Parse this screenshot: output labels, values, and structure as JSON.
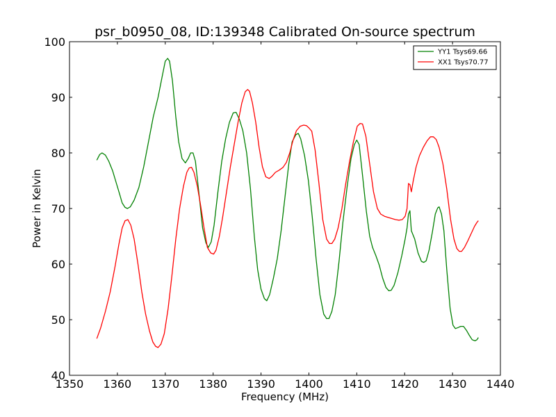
{
  "chart_data": {
    "type": "line",
    "title": "psr_b0950_08, ID:139348 Calibrated On-source spectrum",
    "xlabel": "Frequency (MHz)",
    "ylabel": "Power in Kelvin",
    "xlim": [
      1350,
      1440
    ],
    "ylim": [
      40,
      100
    ],
    "xticks": [
      1350,
      1360,
      1370,
      1380,
      1390,
      1400,
      1410,
      1420,
      1430,
      1440
    ],
    "yticks": [
      40,
      50,
      60,
      70,
      80,
      90,
      100
    ],
    "grid": false,
    "legend_position": "top-right",
    "series": [
      {
        "name": "YY1 Tsys69.66",
        "color": "#008000",
        "points": [
          [
            1355.7,
            78.7
          ],
          [
            1356.3,
            79.7
          ],
          [
            1356.8,
            80.0
          ],
          [
            1357.5,
            79.6
          ],
          [
            1358.2,
            78.5
          ],
          [
            1359,
            76.8
          ],
          [
            1359.8,
            74.5
          ],
          [
            1360.5,
            72.5
          ],
          [
            1361,
            71.0
          ],
          [
            1361.6,
            70.2
          ],
          [
            1362.1,
            70.0
          ],
          [
            1362.7,
            70.3
          ],
          [
            1363.5,
            71.5
          ],
          [
            1364.5,
            73.8
          ],
          [
            1365.5,
            77.5
          ],
          [
            1366.5,
            82.0
          ],
          [
            1367.5,
            86.5
          ],
          [
            1368.5,
            90.0
          ],
          [
            1369.3,
            93.5
          ],
          [
            1370,
            96.5
          ],
          [
            1370.5,
            97.0
          ],
          [
            1370.9,
            96.5
          ],
          [
            1371.5,
            93.0
          ],
          [
            1372.2,
            86.5
          ],
          [
            1372.8,
            82.0
          ],
          [
            1373.5,
            79.0
          ],
          [
            1374.2,
            78.2
          ],
          [
            1374.8,
            79.0
          ],
          [
            1375.3,
            80.0
          ],
          [
            1375.8,
            80.0
          ],
          [
            1376.3,
            78.5
          ],
          [
            1377,
            73.0
          ],
          [
            1377.8,
            66.5
          ],
          [
            1378.5,
            63.8
          ],
          [
            1379,
            63.0
          ],
          [
            1379.6,
            64.0
          ],
          [
            1380.2,
            67.0
          ],
          [
            1381,
            73.0
          ],
          [
            1381.8,
            78.5
          ],
          [
            1382.6,
            82.5
          ],
          [
            1383.4,
            85.5
          ],
          [
            1384.2,
            87.2
          ],
          [
            1384.8,
            87.3
          ],
          [
            1385.5,
            86.0
          ],
          [
            1386.2,
            84.0
          ],
          [
            1387,
            80.0
          ],
          [
            1387.8,
            73.5
          ],
          [
            1388.6,
            65.0
          ],
          [
            1389.3,
            59.0
          ],
          [
            1390,
            55.5
          ],
          [
            1390.7,
            53.8
          ],
          [
            1391.2,
            53.4
          ],
          [
            1391.8,
            54.5
          ],
          [
            1392.6,
            57.5
          ],
          [
            1393.4,
            61.0
          ],
          [
            1394.2,
            66.0
          ],
          [
            1395,
            72.0
          ],
          [
            1395.8,
            78.0
          ],
          [
            1396.5,
            82.0
          ],
          [
            1397.3,
            83.3
          ],
          [
            1397.8,
            83.5
          ],
          [
            1398.3,
            82.5
          ],
          [
            1399.1,
            79.5
          ],
          [
            1399.9,
            75.0
          ],
          [
            1400.7,
            68.5
          ],
          [
            1401.5,
            61.0
          ],
          [
            1402.3,
            54.5
          ],
          [
            1403.1,
            51.0
          ],
          [
            1403.7,
            50.2
          ],
          [
            1404.2,
            50.2
          ],
          [
            1404.8,
            51.5
          ],
          [
            1405.5,
            54.5
          ],
          [
            1406.3,
            60.5
          ],
          [
            1407.1,
            67.5
          ],
          [
            1408,
            74.0
          ],
          [
            1408.8,
            79.0
          ],
          [
            1409.5,
            81.5
          ],
          [
            1410,
            82.3
          ],
          [
            1410.5,
            81.5
          ],
          [
            1411.2,
            76.0
          ],
          [
            1412,
            69.5
          ],
          [
            1412.7,
            65.0
          ],
          [
            1413.3,
            63.0
          ],
          [
            1414,
            61.5
          ],
          [
            1414.7,
            59.8
          ],
          [
            1415.4,
            57.5
          ],
          [
            1416.1,
            55.8
          ],
          [
            1416.7,
            55.2
          ],
          [
            1417.2,
            55.3
          ],
          [
            1417.8,
            56.2
          ],
          [
            1418.6,
            58.5
          ],
          [
            1419.4,
            61.5
          ],
          [
            1420.1,
            64.5
          ],
          [
            1420.5,
            66.5
          ],
          [
            1420.8,
            69.0
          ],
          [
            1421.1,
            69.6
          ],
          [
            1421.4,
            66.0
          ],
          [
            1422.1,
            64.5
          ],
          [
            1422.8,
            62.0
          ],
          [
            1423.5,
            60.5
          ],
          [
            1424,
            60.3
          ],
          [
            1424.5,
            60.6
          ],
          [
            1425.1,
            62.5
          ],
          [
            1425.8,
            65.8
          ],
          [
            1426.4,
            69.0
          ],
          [
            1426.9,
            70.1
          ],
          [
            1427.2,
            70.3
          ],
          [
            1427.7,
            69.0
          ],
          [
            1428.2,
            66.0
          ],
          [
            1428.8,
            59.0
          ],
          [
            1429.5,
            52.0
          ],
          [
            1430.1,
            49.0
          ],
          [
            1430.6,
            48.4
          ],
          [
            1431.2,
            48.6
          ],
          [
            1431.7,
            48.8
          ],
          [
            1432.3,
            48.8
          ],
          [
            1432.9,
            48.1
          ],
          [
            1433.5,
            47.2
          ],
          [
            1434.1,
            46.4
          ],
          [
            1434.7,
            46.2
          ],
          [
            1435.1,
            46.4
          ],
          [
            1435.4,
            46.8
          ]
        ]
      },
      {
        "name": "XX1 Tsys70.77",
        "color": "#ff0000",
        "points": [
          [
            1355.7,
            46.6
          ],
          [
            1356.5,
            48.5
          ],
          [
            1357.5,
            51.5
          ],
          [
            1358.5,
            55.0
          ],
          [
            1359.5,
            59.5
          ],
          [
            1360.3,
            63.5
          ],
          [
            1361,
            66.5
          ],
          [
            1361.6,
            67.8
          ],
          [
            1362.2,
            68.0
          ],
          [
            1362.8,
            67.0
          ],
          [
            1363.5,
            64.5
          ],
          [
            1364.3,
            60.0
          ],
          [
            1365.1,
            55.0
          ],
          [
            1365.9,
            51.0
          ],
          [
            1366.7,
            48.0
          ],
          [
            1367.4,
            46.0
          ],
          [
            1368,
            45.2
          ],
          [
            1368.5,
            45.0
          ],
          [
            1369.1,
            45.6
          ],
          [
            1369.8,
            47.5
          ],
          [
            1370.6,
            52.0
          ],
          [
            1371.4,
            58.0
          ],
          [
            1372.2,
            64.5
          ],
          [
            1373,
            70.0
          ],
          [
            1373.8,
            74.0
          ],
          [
            1374.5,
            76.5
          ],
          [
            1375,
            77.3
          ],
          [
            1375.5,
            77.4
          ],
          [
            1376,
            76.5
          ],
          [
            1376.7,
            74.0
          ],
          [
            1377.4,
            70.5
          ],
          [
            1378.1,
            66.5
          ],
          [
            1378.8,
            63.0
          ],
          [
            1379.5,
            62.0
          ],
          [
            1380.1,
            61.8
          ],
          [
            1380.6,
            62.5
          ],
          [
            1381.3,
            65.0
          ],
          [
            1382,
            68.5
          ],
          [
            1382.8,
            73.0
          ],
          [
            1383.6,
            77.5
          ],
          [
            1384.4,
            81.5
          ],
          [
            1385.2,
            85.5
          ],
          [
            1386,
            89.0
          ],
          [
            1386.7,
            91.0
          ],
          [
            1387.2,
            91.4
          ],
          [
            1387.6,
            91.1
          ],
          [
            1388.2,
            89.0
          ],
          [
            1388.9,
            85.5
          ],
          [
            1389.6,
            81.0
          ],
          [
            1390.3,
            77.5
          ],
          [
            1391,
            75.7
          ],
          [
            1391.7,
            75.4
          ],
          [
            1392.3,
            75.8
          ],
          [
            1393,
            76.5
          ],
          [
            1393.8,
            76.9
          ],
          [
            1394.6,
            77.4
          ],
          [
            1395.3,
            78.3
          ],
          [
            1396,
            80.0
          ],
          [
            1396.7,
            82.3
          ],
          [
            1397.4,
            84.0
          ],
          [
            1398.2,
            84.8
          ],
          [
            1398.9,
            85.0
          ],
          [
            1399.5,
            84.9
          ],
          [
            1400,
            84.5
          ],
          [
            1400.6,
            83.9
          ],
          [
            1401.3,
            80.5
          ],
          [
            1402.1,
            74.5
          ],
          [
            1402.9,
            68.0
          ],
          [
            1403.7,
            64.5
          ],
          [
            1404.3,
            63.7
          ],
          [
            1404.8,
            63.7
          ],
          [
            1405.4,
            64.5
          ],
          [
            1406.1,
            66.5
          ],
          [
            1406.9,
            70.0
          ],
          [
            1407.7,
            74.5
          ],
          [
            1408.5,
            78.5
          ],
          [
            1409.3,
            82.0
          ],
          [
            1410.1,
            84.8
          ],
          [
            1410.7,
            85.3
          ],
          [
            1411.2,
            85.2
          ],
          [
            1411.9,
            83.0
          ],
          [
            1412.7,
            78.0
          ],
          [
            1413.5,
            73.0
          ],
          [
            1414.3,
            70.0
          ],
          [
            1415,
            69.0
          ],
          [
            1415.8,
            68.6
          ],
          [
            1416.5,
            68.4
          ],
          [
            1417.3,
            68.2
          ],
          [
            1418.1,
            68.0
          ],
          [
            1418.8,
            67.9
          ],
          [
            1419.5,
            68.0
          ],
          [
            1420.1,
            68.6
          ],
          [
            1420.5,
            70.0
          ],
          [
            1420.8,
            74.5
          ],
          [
            1421.1,
            74.3
          ],
          [
            1421.4,
            73.0
          ],
          [
            1421.8,
            75.0
          ],
          [
            1422.4,
            77.5
          ],
          [
            1423.1,
            79.5
          ],
          [
            1423.9,
            81.0
          ],
          [
            1424.7,
            82.2
          ],
          [
            1425.4,
            82.9
          ],
          [
            1426,
            82.9
          ],
          [
            1426.6,
            82.4
          ],
          [
            1427.2,
            81.0
          ],
          [
            1428,
            78.0
          ],
          [
            1428.8,
            73.5
          ],
          [
            1429.6,
            68.0
          ],
          [
            1430.3,
            64.5
          ],
          [
            1430.9,
            62.8
          ],
          [
            1431.4,
            62.3
          ],
          [
            1431.9,
            62.3
          ],
          [
            1432.5,
            63.0
          ],
          [
            1433.2,
            64.2
          ],
          [
            1433.9,
            65.5
          ],
          [
            1434.6,
            66.8
          ],
          [
            1435.1,
            67.5
          ],
          [
            1435.4,
            67.8
          ]
        ]
      }
    ]
  }
}
